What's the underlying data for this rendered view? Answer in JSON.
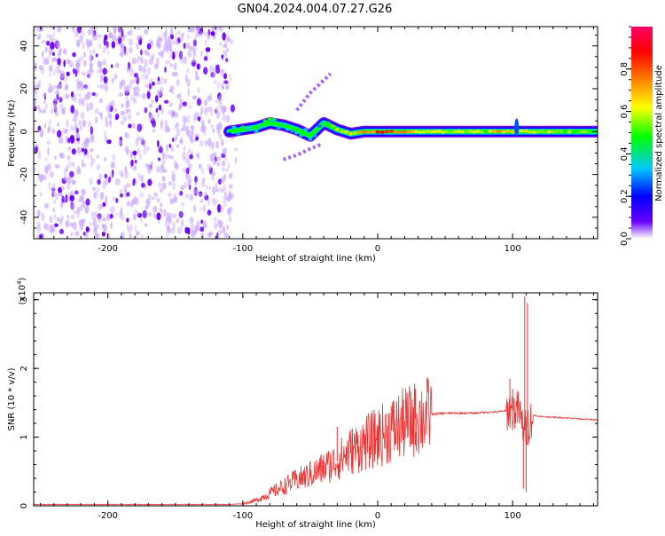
{
  "title": "GN04.2024.004.07.27.G26",
  "chart_data": [
    {
      "type": "heatmap",
      "xlabel": "Height of straight line (km)",
      "ylabel": "Frequency (Hz)",
      "xlim": [
        -255,
        163
      ],
      "ylim": [
        -50,
        49
      ],
      "x_ticks": [
        -200,
        -100,
        0,
        100
      ],
      "x_tick_labels": [
        "-200",
        "-100",
        "0",
        "100"
      ],
      "y_ticks": [
        -40,
        -20,
        0,
        20,
        40
      ],
      "y_tick_labels": [
        "-40",
        "-20",
        "0",
        "20",
        "40"
      ],
      "colorbar": {
        "label": "Normalized spectral amplitude",
        "range": [
          0,
          1
        ],
        "ticks": [
          0.0,
          0.2,
          0.4,
          0.6,
          0.8
        ],
        "tick_labels": [
          "0.0",
          "0.2",
          "0.4",
          "0.6",
          "0.8"
        ],
        "colormap": [
          "#ffffff",
          "#6a00ff",
          "#0000ff",
          "#00c8ff",
          "#00ff00",
          "#ffff00",
          "#ff8000",
          "#ff0000",
          "#ff0066"
        ]
      },
      "noise_region": {
        "x": [
          -255,
          -108
        ],
        "y": [
          -50,
          49
        ],
        "amplitude": 0.1
      },
      "ridge": [
        {
          "x": -110,
          "y": 0,
          "a": 0.25,
          "w": 2
        },
        {
          "x": -100,
          "y": 1,
          "a": 0.45,
          "w": 3
        },
        {
          "x": -90,
          "y": 2,
          "a": 0.4,
          "w": 3
        },
        {
          "x": -80,
          "y": 4,
          "a": 0.45,
          "w": 3
        },
        {
          "x": -70,
          "y": 3,
          "a": 0.4,
          "w": 3
        },
        {
          "x": -60,
          "y": 1,
          "a": 0.4,
          "w": 3
        },
        {
          "x": -50,
          "y": -2,
          "a": 0.35,
          "w": 3
        },
        {
          "x": -40,
          "y": 4,
          "a": 0.4,
          "w": 3
        },
        {
          "x": -30,
          "y": 1,
          "a": 0.55,
          "w": 2
        },
        {
          "x": -20,
          "y": -1,
          "a": 0.6,
          "w": 2
        },
        {
          "x": -10,
          "y": 0,
          "a": 0.7,
          "w": 2
        },
        {
          "x": 0,
          "y": 0,
          "a": 0.8,
          "w": 2
        },
        {
          "x": 10,
          "y": 0,
          "a": 0.85,
          "w": 2
        },
        {
          "x": 20,
          "y": 0,
          "a": 0.7,
          "w": 2
        },
        {
          "x": 40,
          "y": 0,
          "a": 0.6,
          "w": 2
        },
        {
          "x": 60,
          "y": 0,
          "a": 0.55,
          "w": 2
        },
        {
          "x": 80,
          "y": 0,
          "a": 0.55,
          "w": 2
        },
        {
          "x": 90,
          "y": 0,
          "a": 0.75,
          "w": 2
        },
        {
          "x": 100,
          "y": 0,
          "a": 0.65,
          "w": 2
        },
        {
          "x": 110,
          "y": 0,
          "a": 0.6,
          "w": 2
        },
        {
          "x": 130,
          "y": 0,
          "a": 0.55,
          "w": 2
        },
        {
          "x": 163,
          "y": 0,
          "a": 0.5,
          "w": 2
        }
      ],
      "branches": [
        {
          "points": [
            [
              -60,
              10
            ],
            [
              -50,
              18
            ],
            [
              -40,
              24
            ],
            [
              -35,
              27
            ]
          ],
          "amplitude": 0.15
        },
        {
          "points": [
            [
              -70,
              -13
            ],
            [
              -60,
              -11
            ],
            [
              -50,
              -8
            ],
            [
              -42,
              -6
            ]
          ],
          "amplitude": 0.12
        }
      ]
    },
    {
      "type": "line",
      "xlabel": "Height of straight line (km)",
      "ylabel": "SNR (10 * v/v)",
      "y_scale_label": "(x10",
      "y_scale_exponent": "4",
      "xlim": [
        -255,
        163
      ],
      "ylim": [
        0,
        3.1
      ],
      "x_ticks": [
        -200,
        -100,
        0,
        100
      ],
      "x_tick_labels": [
        "-200",
        "-100",
        "0",
        "100"
      ],
      "y_ticks": [
        0,
        1,
        2,
        3
      ],
      "y_tick_labels": [
        "0",
        "1",
        "2",
        "3"
      ],
      "color": "#ee3333",
      "x": [
        -255,
        -200,
        -150,
        -110,
        -100,
        -90,
        -80,
        -70,
        -60,
        -50,
        -40,
        -30,
        -20,
        -10,
        0,
        10,
        20,
        30,
        40,
        50,
        60,
        70,
        80,
        90,
        95,
        100,
        104,
        107,
        109,
        111,
        115,
        120,
        140,
        163
      ],
      "y": [
        0.02,
        0.02,
        0.02,
        0.02,
        0.03,
        0.08,
        0.18,
        0.28,
        0.38,
        0.45,
        0.55,
        0.65,
        0.8,
        0.9,
        1.0,
        1.1,
        1.2,
        1.28,
        1.33,
        1.35,
        1.35,
        1.35,
        1.36,
        1.37,
        1.38,
        1.38,
        1.4,
        1.2,
        1.1,
        1.15,
        1.32,
        1.3,
        1.28,
        1.25
      ],
      "spikes": [
        {
          "x": 109,
          "y": 3.05
        },
        {
          "x": 111,
          "y": 2.95
        },
        {
          "x": 108,
          "y": 0.25
        },
        {
          "x": 110,
          "y": 0.2
        },
        {
          "x": 98,
          "y": 1.85
        },
        {
          "x": 100,
          "y": 1.7
        },
        {
          "x": -30,
          "y": 1.15
        },
        {
          "x": 28,
          "y": 1.7
        },
        {
          "x": -10,
          "y": 1.05
        },
        {
          "x": 10,
          "y": 1.45
        },
        {
          "x": -50,
          "y": 0.65
        }
      ]
    }
  ]
}
